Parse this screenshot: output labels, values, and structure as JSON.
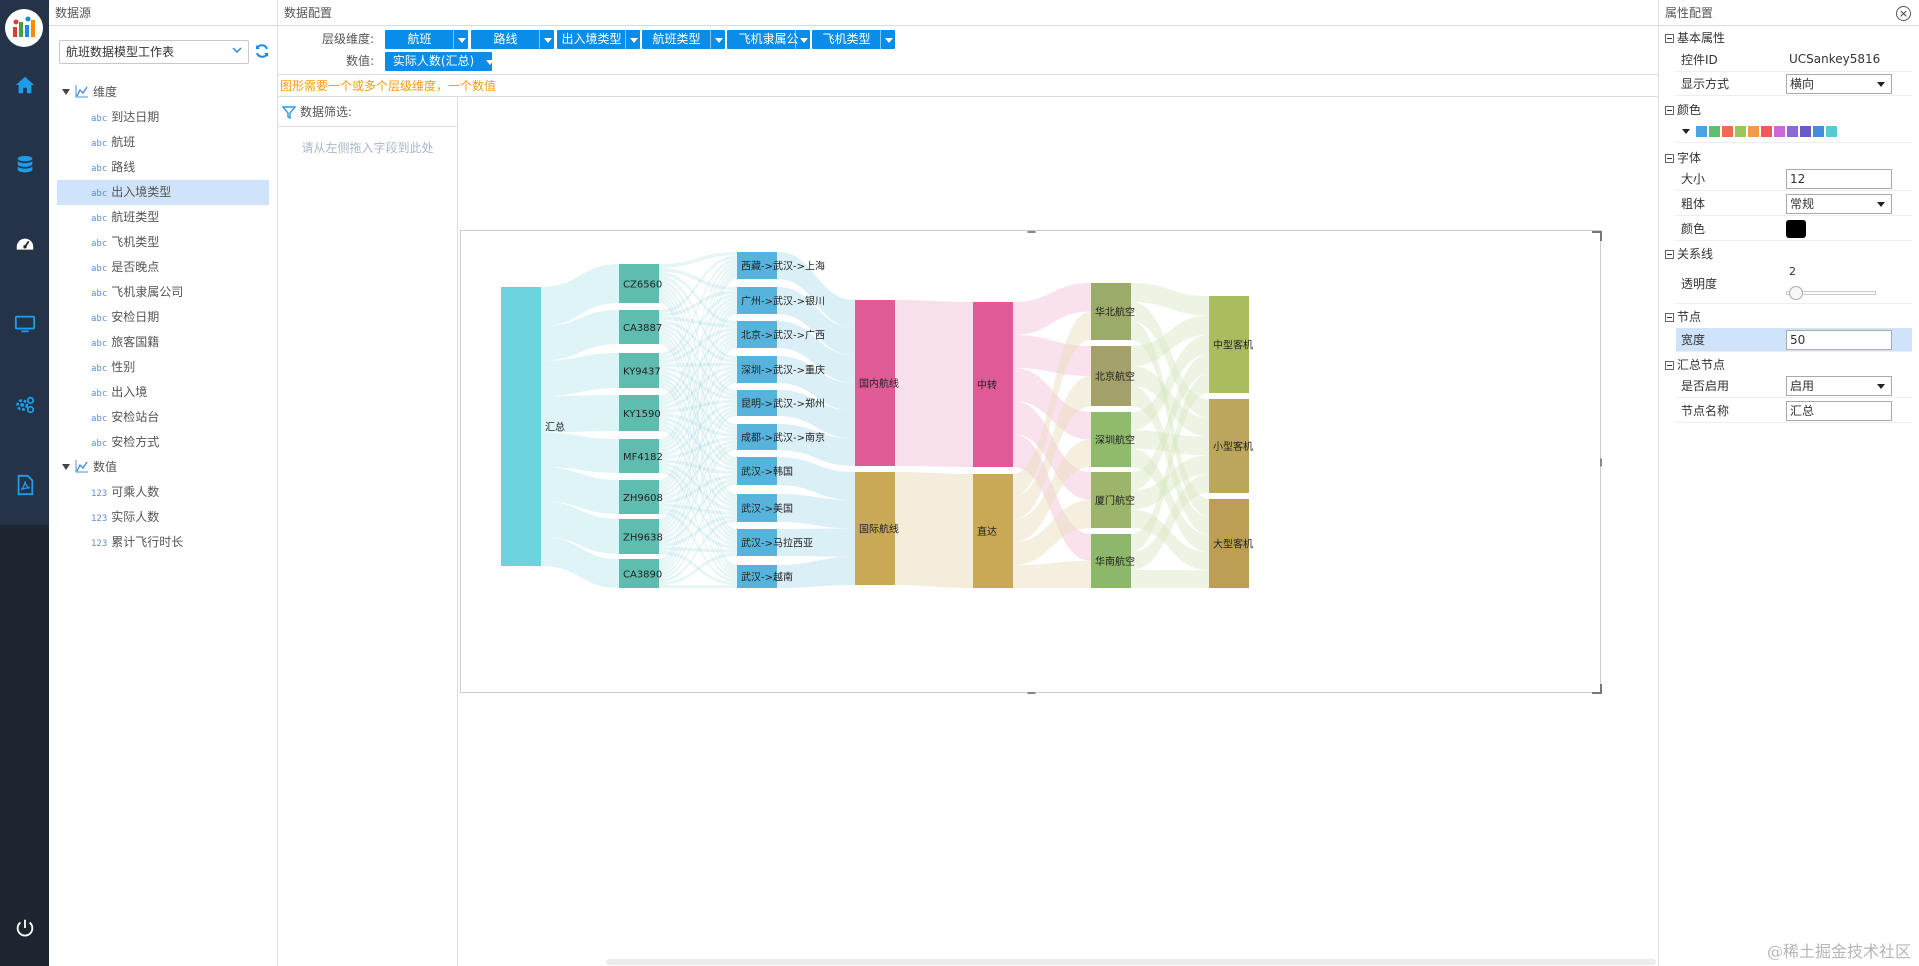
{
  "datasource": {
    "title": "数据源",
    "workbook": "航班数据模型工作表",
    "tree": [
      {
        "type": "group",
        "label": "维度",
        "icon": "dimension-icon"
      },
      {
        "type": "leaf",
        "tag": "abc",
        "label": "到达日期"
      },
      {
        "type": "leaf",
        "tag": "abc",
        "label": "航班"
      },
      {
        "type": "leaf",
        "tag": "abc",
        "label": "路线"
      },
      {
        "type": "leaf",
        "tag": "abc",
        "label": "出入境类型",
        "selected": true
      },
      {
        "type": "leaf",
        "tag": "abc",
        "label": "航班类型"
      },
      {
        "type": "leaf",
        "tag": "abc",
        "label": "飞机类型"
      },
      {
        "type": "leaf",
        "tag": "abc",
        "label": "是否晚点"
      },
      {
        "type": "leaf",
        "tag": "abc",
        "label": "飞机隶属公司"
      },
      {
        "type": "leaf",
        "tag": "abc",
        "label": "安检日期"
      },
      {
        "type": "leaf",
        "tag": "abc",
        "label": "旅客国籍"
      },
      {
        "type": "leaf",
        "tag": "abc",
        "label": "性别"
      },
      {
        "type": "leaf",
        "tag": "abc",
        "label": "出入境"
      },
      {
        "type": "leaf",
        "tag": "abc",
        "label": "安检站台"
      },
      {
        "type": "leaf",
        "tag": "abc",
        "label": "安检方式"
      },
      {
        "type": "group",
        "label": "数值",
        "icon": "measure-icon"
      },
      {
        "type": "leaf",
        "tag": "123",
        "label": "可乘人数"
      },
      {
        "type": "leaf",
        "tag": "123",
        "label": "实际人数"
      },
      {
        "type": "leaf",
        "tag": "123",
        "label": "累计飞行时长"
      }
    ]
  },
  "config": {
    "title": "数据配置",
    "dims_label": "层级维度:",
    "dims": [
      "航班",
      "路线",
      "出入境类型",
      "航班类型",
      "飞机隶属公司",
      "飞机类型"
    ],
    "values_label": "数值:",
    "values": [
      "实际人数(汇总)"
    ],
    "warning": "图形需要一个或多个层级维度，一个数值",
    "filter_title": "数据筛选:",
    "filter_hint": "请从左侧拖入字段到此处"
  },
  "chart_data": {
    "type": "sankey",
    "columns": [
      [
        "汇总"
      ],
      [
        "CZ6560",
        "CA3887",
        "KY9437",
        "KY1590",
        "MF4182",
        "ZH9608",
        "ZH9638",
        "CA3890"
      ],
      [
        "西藏->武汉->上海",
        "广州->武汉->银川",
        "北京->武汉->广西",
        "深圳->武汉->重庆",
        "昆明->武汉->郑州",
        "成都->武汉->南京",
        "武汉->韩国",
        "武汉->美国",
        "武汉->马拉西亚",
        "武汉->越南"
      ],
      [
        "国内航线",
        "国际航线"
      ],
      [
        "中转",
        "直达"
      ],
      [
        "华北航空",
        "北京航空",
        "深圳航空",
        "厦门航空",
        "华南航空"
      ],
      [
        "中型客机",
        "小型客机",
        "大型客机"
      ]
    ],
    "node_colors": {
      "汇总": "#6dd3dc",
      "flight": "#5fbdb0",
      "route": "#56b4dc",
      "国内航线": "#e05a98",
      "国际航线": "#c9a955",
      "中转": "#e05a98",
      "直达": "#c9a955",
      "华北航空": "#9aab6a",
      "北京航空": "#a4a06a",
      "深圳航空": "#8fbb6a",
      "厦门航空": "#9db56a",
      "华南航空": "#8db86a",
      "中型客机": "#aabd5e",
      "小型客机": "#bba65c",
      "大型客机": "#bc9f55"
    }
  },
  "props": {
    "title": "属性配置",
    "sections": {
      "basic": "基本属性",
      "color": "颜色",
      "font": "字体",
      "link": "关系线",
      "node": "节点",
      "summary": "汇总节点"
    },
    "control_id_label": "控件ID",
    "control_id": "UCSankey5816",
    "display_label": "显示方式",
    "display": "横向",
    "palette": [
      "#4aa4e0",
      "#5fbf6a",
      "#ef6b50",
      "#9cc65a",
      "#f29a4a",
      "#ef5a5a",
      "#c96ad6",
      "#8a6ad6",
      "#6a5ac6",
      "#4a8ad6",
      "#56cbd6"
    ],
    "font_size_label": "大小",
    "font_size": "12",
    "bold_label": "粗体",
    "bold": "常规",
    "font_color_label": "颜色",
    "font_color": "#000000",
    "opacity_label": "透明度",
    "opacity": "2",
    "width_label": "宽度",
    "width": "50",
    "enable_label": "是否启用",
    "enable": "启用",
    "node_name_label": "节点名称",
    "node_name": "汇总"
  },
  "watermark": "@稀土掘金技术社区"
}
